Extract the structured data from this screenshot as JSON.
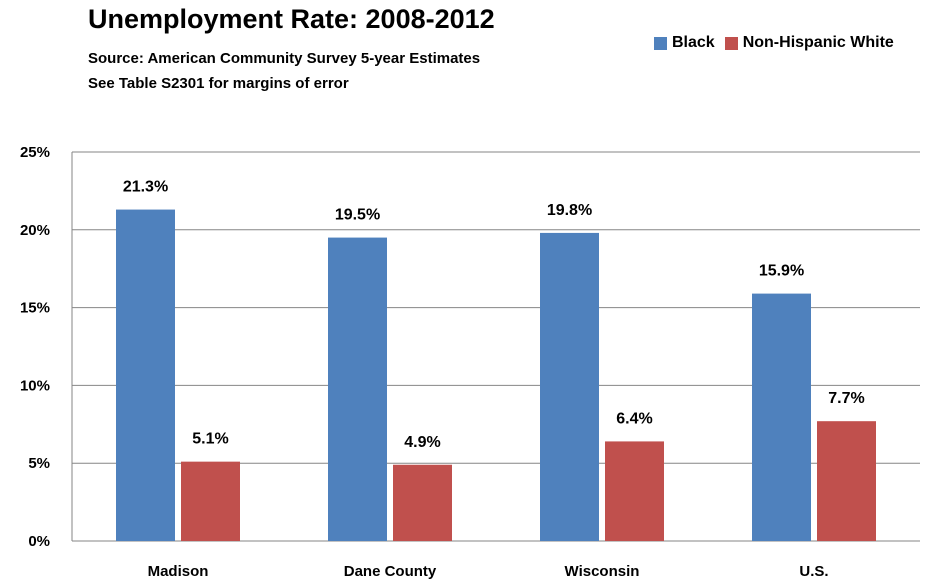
{
  "chart_data": {
    "type": "bar",
    "title": "Unemployment Rate: 2008-2012",
    "subtitle_lines": [
      "Source: American Community Survey 5-year Estimates",
      "See Table S2301 for margins of error"
    ],
    "categories": [
      "Madison",
      "Dane County",
      "Wisconsin",
      "U.S."
    ],
    "series": [
      {
        "name": "Black",
        "values": [
          21.3,
          19.5,
          19.8,
          15.9
        ],
        "labels": [
          "21.3%",
          "19.5%",
          "19.8%",
          "15.9%"
        ],
        "color": "#4F81BD"
      },
      {
        "name": "Non-Hispanic White",
        "values": [
          5.1,
          4.9,
          6.4,
          7.7
        ],
        "labels": [
          "5.1%",
          "4.9%",
          "6.4%",
          "7.7%"
        ],
        "color": "#C0504D"
      }
    ],
    "yticks": [
      0,
      5,
      10,
      15,
      20,
      25
    ],
    "ytick_labels": [
      "0%",
      "5%",
      "10%",
      "15%",
      "20%",
      "25%"
    ],
    "ylim": [
      0,
      25
    ],
    "xlabel": "",
    "ylabel": "",
    "grid": true,
    "legend_position": "top-right"
  }
}
